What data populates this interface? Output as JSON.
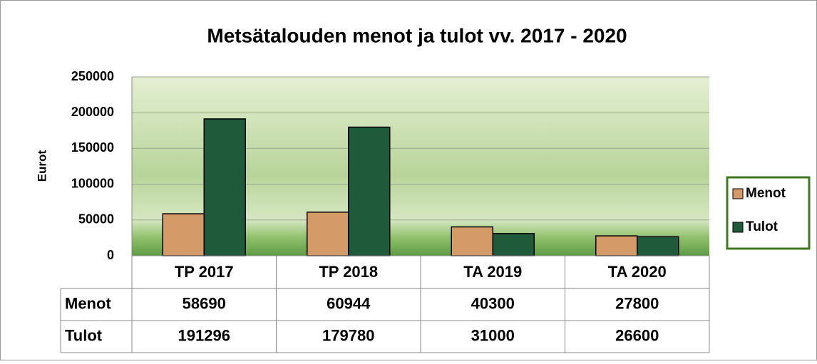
{
  "chart_data": {
    "type": "bar",
    "title": "Metsätalouden menot ja tulot vv. 2017 - 2020",
    "y_label": "Eurot",
    "categories": [
      "TP 2017",
      "TP 2018",
      "TA 2019",
      "TA 2020"
    ],
    "series": [
      {
        "name": "Menot",
        "color": "#d49a68",
        "values": [
          58690,
          60944,
          40300,
          27800
        ]
      },
      {
        "name": "Tulot",
        "color": "#1f5a3a",
        "values": [
          191296,
          179780,
          31000,
          26600
        ]
      }
    ],
    "ylim": [
      0,
      250000
    ],
    "yticks": [
      0,
      50000,
      100000,
      150000,
      200000,
      250000
    ],
    "grid": true,
    "legend": "right"
  }
}
